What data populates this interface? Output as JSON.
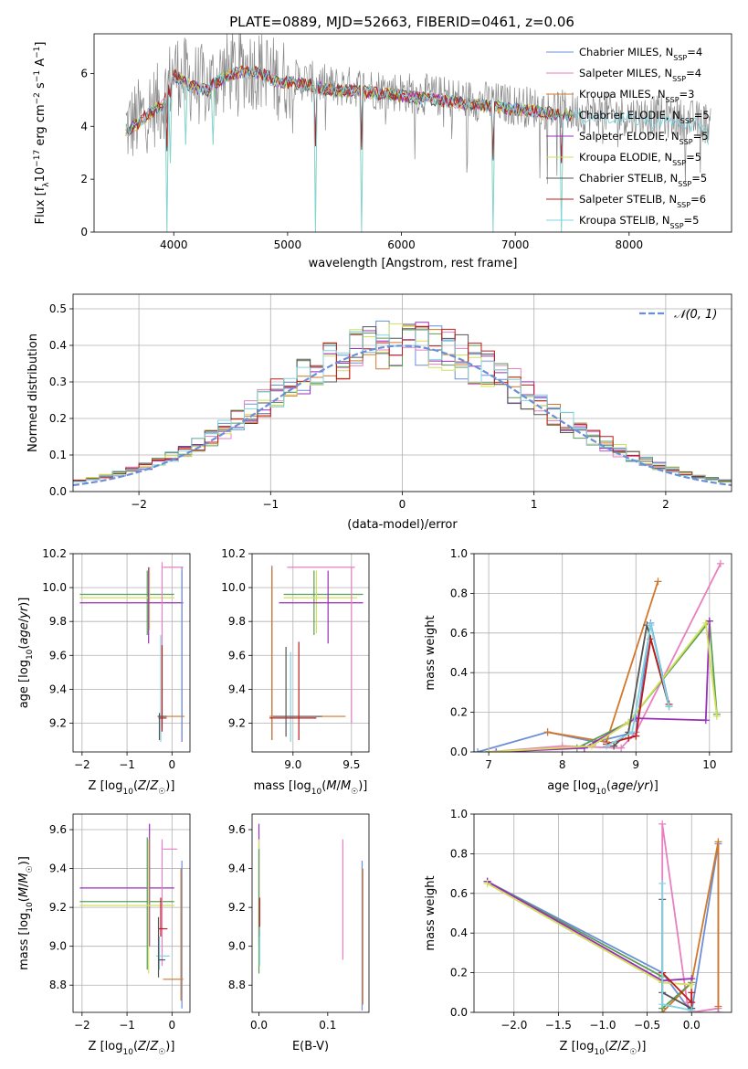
{
  "title": "PLATE=0889, MJD=52663, FIBERID=0461, z=0.06",
  "colors": {
    "chabrier_miles": "#6a8fd8",
    "salpeter_miles": "#e77fc0",
    "kroupa_miles": "#d2772a",
    "chabrier_elodie": "#5a9e54",
    "salpeter_elodie": "#9a2fb8",
    "kroupa_elodie": "#d2e05a",
    "chabrier_stelib": "#555555",
    "salpeter_stelib": "#c01a1a",
    "kroupa_stelib": "#7fd4e0",
    "data": "#888888"
  },
  "chart_data": [
    {
      "id": "spectrum",
      "type": "line",
      "xlabel": "wavelength [Angstrom, rest frame]",
      "ylabel": "Flux [f_λ 10^-17 erg cm^-2 s^-1 A^-1]",
      "xlim": [
        3300,
        8900
      ],
      "ylim": [
        0,
        7.5
      ],
      "xticks": [
        4000,
        5000,
        6000,
        7000,
        8000
      ],
      "yticks": [
        0,
        2,
        4,
        6
      ],
      "legend_position": "top-right",
      "legend": [
        {
          "key": "chabrier_miles",
          "label": "Chabrier MILES, N",
          "sub": "SSP",
          "tail": "=4"
        },
        {
          "key": "salpeter_miles",
          "label": "Salpeter MILES, N",
          "sub": "SSP",
          "tail": "=4"
        },
        {
          "key": "kroupa_miles",
          "label": "Kroupa MILES, N",
          "sub": "SSP",
          "tail": "=3"
        },
        {
          "key": "chabrier_elodie",
          "label": "Chabrier ELODIE, N",
          "sub": "SSP",
          "tail": "=5"
        },
        {
          "key": "salpeter_elodie",
          "label": "Salpeter ELODIE, N",
          "sub": "SSP",
          "tail": "=5"
        },
        {
          "key": "kroupa_elodie",
          "label": "Kroupa ELODIE, N",
          "sub": "SSP",
          "tail": "=5"
        },
        {
          "key": "chabrier_stelib",
          "label": "Chabrier STELIB, N",
          "sub": "SSP",
          "tail": "=5"
        },
        {
          "key": "salpeter_stelib",
          "label": "Salpeter STELIB, N",
          "sub": "SSP",
          "tail": "=6"
        },
        {
          "key": "kroupa_stelib",
          "label": "Kroupa STELIB, N",
          "sub": "SSP",
          "tail": "=5"
        }
      ],
      "data_envelope": {
        "x": [
          3600,
          3700,
          3800,
          3900,
          4000,
          4100,
          4200,
          4300,
          4400,
          4500,
          4600,
          4700,
          4800,
          4900,
          5000,
          5200,
          5400,
          5600,
          5800,
          6000,
          6200,
          6400,
          6600,
          6800,
          7000,
          7200,
          7400,
          7600,
          7800,
          8000,
          8200,
          8400,
          8600,
          8700
        ],
        "y": [
          4.0,
          4.3,
          4.7,
          4.9,
          6.1,
          5.8,
          5.6,
          5.5,
          5.9,
          6.1,
          6.2,
          6.2,
          6.1,
          5.8,
          5.8,
          5.7,
          5.5,
          5.5,
          5.4,
          5.3,
          5.2,
          5.1,
          5.0,
          4.9,
          4.8,
          4.7,
          4.6,
          4.5,
          4.5,
          4.4,
          4.4,
          4.3,
          4.2,
          4.1
        ]
      },
      "absorption_dips": [
        {
          "x": 3934,
          "y": 0.0
        },
        {
          "x": 3970,
          "y": 2.6
        },
        {
          "x": 4101,
          "y": 3.3
        },
        {
          "x": 4340,
          "y": 3.3
        },
        {
          "x": 5250,
          "y": 0.0
        },
        {
          "x": 5650,
          "y": 0.0
        },
        {
          "x": 6800,
          "y": 0.0
        },
        {
          "x": 7400,
          "y": 0.0
        },
        {
          "x": 8200,
          "y": 3.9
        },
        {
          "x": 8550,
          "y": 3.8
        },
        {
          "x": 8700,
          "y": 3.3
        }
      ]
    },
    {
      "id": "residuals",
      "type": "line",
      "xlabel": "(data-model)/error",
      "ylabel": "Normed distribution",
      "xlim": [
        -2.5,
        2.5
      ],
      "ylim": [
        0,
        0.54
      ],
      "xticks": [
        -2,
        -1,
        0,
        1,
        2
      ],
      "yticks": [
        0.0,
        0.1,
        0.2,
        0.3,
        0.4,
        0.5
      ],
      "grid": true,
      "legend_position": "top-right",
      "legend": [
        {
          "label": "𝒩(0, 1)",
          "style": "dashed",
          "key": "chabrier_miles"
        }
      ],
      "bin_width": 0.1,
      "bin_start": -2.5
    },
    {
      "id": "Z_age",
      "type": "scatter",
      "xlabel": "Z [log10(Z/Z☉)]",
      "ylabel": "age [log10(age/yr)]",
      "xlim": [
        -2.2,
        0.4
      ],
      "ylim": [
        9.03,
        10.2
      ],
      "xticks": [
        -2,
        -1,
        0
      ],
      "yticks": [
        9.2,
        9.4,
        9.6,
        9.8,
        10.0,
        10.2
      ],
      "grid": true
    },
    {
      "id": "mass_age",
      "type": "scatter",
      "xlabel": "mass [log10(M/M☉)]",
      "ylabel": "",
      "xlim": [
        8.65,
        9.65
      ],
      "ylim": [
        9.03,
        10.2
      ],
      "xticks": [
        9.0,
        9.5
      ],
      "yticks": [
        9.2,
        9.4,
        9.6,
        9.8,
        10.0,
        10.2
      ],
      "grid": true
    },
    {
      "id": "age_weight",
      "type": "line",
      "xlabel": "age [log10(age/yr)]",
      "ylabel": "mass weight",
      "xlim": [
        6.8,
        10.3
      ],
      "ylim": [
        0,
        1.0
      ],
      "xticks": [
        7,
        8,
        9,
        10
      ],
      "yticks": [
        0.0,
        0.2,
        0.4,
        0.6,
        0.8,
        1.0
      ],
      "grid": true,
      "series": [
        {
          "key": "chabrier_miles",
          "x": [
            6.85,
            7.8,
            8.45,
            9.0,
            9.2,
            9.45
          ],
          "y": [
            0.0,
            0.1,
            0.05,
            0.1,
            0.65,
            0.24
          ]
        },
        {
          "key": "salpeter_miles",
          "x": [
            7.0,
            8.0,
            8.8,
            9.0,
            10.15
          ],
          "y": [
            0.0,
            0.03,
            0.02,
            0.1,
            0.95
          ]
        },
        {
          "key": "kroupa_miles",
          "x": [
            7.8,
            8.6,
            9.3
          ],
          "y": [
            0.1,
            0.05,
            0.86
          ]
        },
        {
          "key": "chabrier_elodie",
          "x": [
            7.0,
            8.2,
            8.9,
            10.0,
            10.1
          ],
          "y": [
            0.0,
            0.02,
            0.15,
            0.66,
            0.19
          ]
        },
        {
          "key": "salpeter_elodie",
          "x": [
            7.1,
            8.3,
            9.0,
            9.95,
            10.0
          ],
          "y": [
            0.0,
            0.02,
            0.17,
            0.16,
            0.66
          ]
        },
        {
          "key": "kroupa_elodie",
          "x": [
            7.0,
            8.4,
            8.9,
            9.95,
            10.1
          ],
          "y": [
            0.0,
            0.03,
            0.15,
            0.65,
            0.18
          ]
        },
        {
          "key": "chabrier_stelib",
          "x": [
            8.7,
            8.9,
            9.15,
            9.45
          ],
          "y": [
            0.03,
            0.1,
            0.64,
            0.23
          ]
        },
        {
          "key": "salpeter_stelib",
          "x": [
            8.6,
            8.9,
            9.0,
            9.2,
            9.45
          ],
          "y": [
            0.04,
            0.07,
            0.08,
            0.57,
            0.24
          ]
        },
        {
          "key": "kroupa_stelib",
          "x": [
            8.6,
            8.95,
            9.2,
            9.45
          ],
          "y": [
            0.03,
            0.1,
            0.64,
            0.23
          ]
        }
      ]
    },
    {
      "id": "Z_mass",
      "type": "scatter",
      "xlabel": "Z [log10(Z/Z☉)]",
      "ylabel": "mass [log10(M/M☉)]",
      "xlim": [
        -2.2,
        0.4
      ],
      "ylim": [
        8.66,
        9.68
      ],
      "xticks": [
        -2,
        -1,
        0
      ],
      "yticks": [
        8.8,
        9.0,
        9.2,
        9.4,
        9.6
      ],
      "grid": true
    },
    {
      "id": "ebv_mass",
      "type": "scatter",
      "xlabel": "E(B-V)",
      "ylabel": "",
      "xlim": [
        -0.01,
        0.16
      ],
      "ylim": [
        8.66,
        9.68
      ],
      "xticks": [
        0.0,
        0.1
      ],
      "yticks": [
        8.8,
        9.0,
        9.2,
        9.4,
        9.6
      ],
      "grid": false
    },
    {
      "id": "Z_weight",
      "type": "line",
      "xlabel": "Z [log10(Z/Z☉)]",
      "ylabel": "mass weight",
      "xlim": [
        -2.45,
        0.45
      ],
      "ylim": [
        0,
        1.0
      ],
      "xticks": [
        -2.0,
        -1.5,
        -1.0,
        -0.5,
        0.0
      ],
      "yticks": [
        0.0,
        0.2,
        0.4,
        0.6,
        0.8,
        1.0
      ],
      "grid": true,
      "series": [
        {
          "key": "chabrier_miles",
          "x": [
            -2.3,
            -0.33,
            0.0,
            0.3,
            0.3
          ],
          "y": [
            0.66,
            0.2,
            0.0,
            0.85,
            0.0
          ]
        },
        {
          "key": "salpeter_miles",
          "x": [
            -0.33,
            -0.33,
            -0.05,
            0.0,
            0.3
          ],
          "y": [
            0.0,
            0.95,
            0.05,
            0.0,
            0.02
          ]
        },
        {
          "key": "kroupa_miles",
          "x": [
            -0.33,
            0.0,
            0.3,
            0.3
          ],
          "y": [
            0.0,
            0.15,
            0.86,
            0.03
          ]
        },
        {
          "key": "chabrier_elodie",
          "x": [
            -2.3,
            -0.33,
            -0.33,
            0.0
          ],
          "y": [
            0.66,
            0.18,
            0.02,
            0.15
          ]
        },
        {
          "key": "salpeter_elodie",
          "x": [
            -2.3,
            -0.33,
            0.0,
            0.0
          ],
          "y": [
            0.66,
            0.16,
            0.17,
            0.0
          ]
        },
        {
          "key": "kroupa_elodie",
          "x": [
            -2.3,
            -0.33,
            0.0,
            0.0
          ],
          "y": [
            0.65,
            0.15,
            0.14,
            0.0
          ]
        },
        {
          "key": "chabrier_stelib",
          "x": [
            -0.33,
            -0.33,
            0.0
          ],
          "y": [
            0.57,
            0.1,
            0.02
          ]
        },
        {
          "key": "salpeter_stelib",
          "x": [
            -0.33,
            0.0,
            0.0
          ],
          "y": [
            0.2,
            0.05,
            0.1
          ]
        },
        {
          "key": "kroupa_stelib",
          "x": [
            -0.33,
            -0.33,
            0.0
          ],
          "y": [
            0.65,
            0.04,
            0.01
          ]
        }
      ]
    }
  ]
}
